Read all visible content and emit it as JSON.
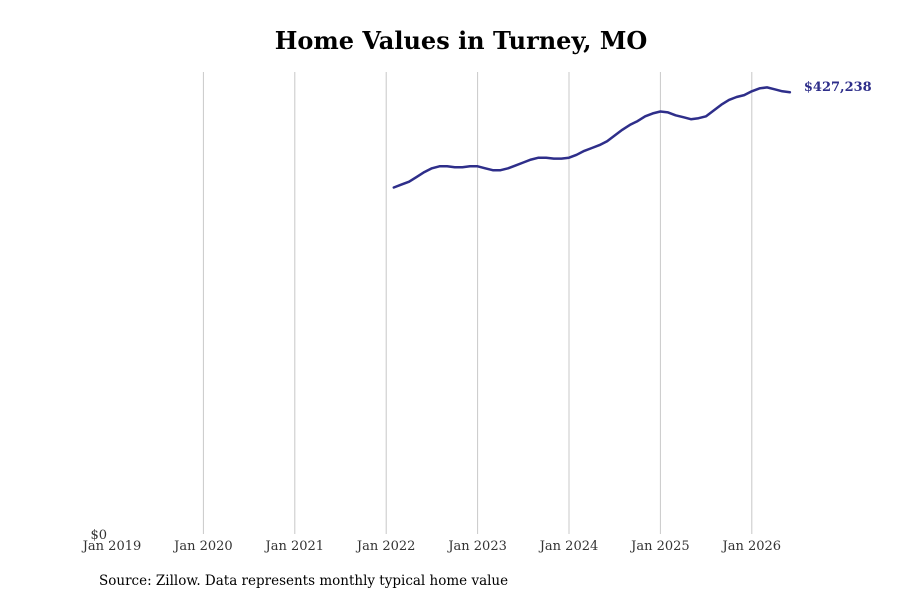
{
  "title": "Home Values in Turney, MO",
  "source": "Source: Zillow. Data represents monthly typical home value",
  "colors": {
    "line": "#2e2e8a",
    "grid": "#c8c8c8",
    "text": "#333333",
    "end_label": "#2e2e8a"
  },
  "chart_data": {
    "type": "line",
    "title": "Home Values in Turney, MO",
    "xlabel": "",
    "ylabel": "",
    "grid": "vertical",
    "xlim": [
      "2019-01",
      "2026-07"
    ],
    "ylim": [
      0,
      480000
    ],
    "x_tick_labels": [
      "Jan 2019",
      "Jan 2020",
      "Jan 2021",
      "Jan 2022",
      "Jan 2023",
      "Jan 2024",
      "Jan 2025",
      "Jan 2026"
    ],
    "y_tick_labels": [
      "$0"
    ],
    "end_label": "$427,238",
    "series": [
      {
        "x": [
          "2022-02",
          "2022-03",
          "2022-04",
          "2022-05",
          "2022-06",
          "2022-07",
          "2022-08",
          "2022-09",
          "2022-10",
          "2022-11",
          "2022-12",
          "2023-01",
          "2023-02",
          "2023-03",
          "2023-04",
          "2023-05",
          "2023-06",
          "2023-07",
          "2023-08",
          "2023-09",
          "2023-10",
          "2023-11",
          "2023-12",
          "2024-01",
          "2024-02",
          "2024-03",
          "2024-04",
          "2024-05",
          "2024-06",
          "2024-07",
          "2024-08",
          "2024-09",
          "2024-10",
          "2024-11",
          "2024-12",
          "2025-01",
          "2025-02",
          "2025-03",
          "2025-04",
          "2025-05",
          "2025-06",
          "2025-07",
          "2025-08",
          "2025-09",
          "2025-10",
          "2025-11",
          "2025-12",
          "2026-01",
          "2026-02",
          "2026-03",
          "2026-04",
          "2026-05",
          "2026-06"
        ],
        "values": [
          360000,
          363000,
          366000,
          371000,
          376000,
          380000,
          382000,
          382000,
          381000,
          381000,
          382000,
          382000,
          380000,
          378000,
          378000,
          380000,
          383000,
          386000,
          389000,
          391000,
          391000,
          390000,
          390000,
          391000,
          394000,
          398000,
          401000,
          404000,
          408000,
          414000,
          420000,
          425000,
          429000,
          434000,
          437000,
          439000,
          438000,
          435000,
          433000,
          431000,
          432000,
          434000,
          440000,
          446000,
          451000,
          454000,
          456000,
          460000,
          463000,
          464000,
          462000,
          460000,
          427238
        ]
      }
    ]
  }
}
